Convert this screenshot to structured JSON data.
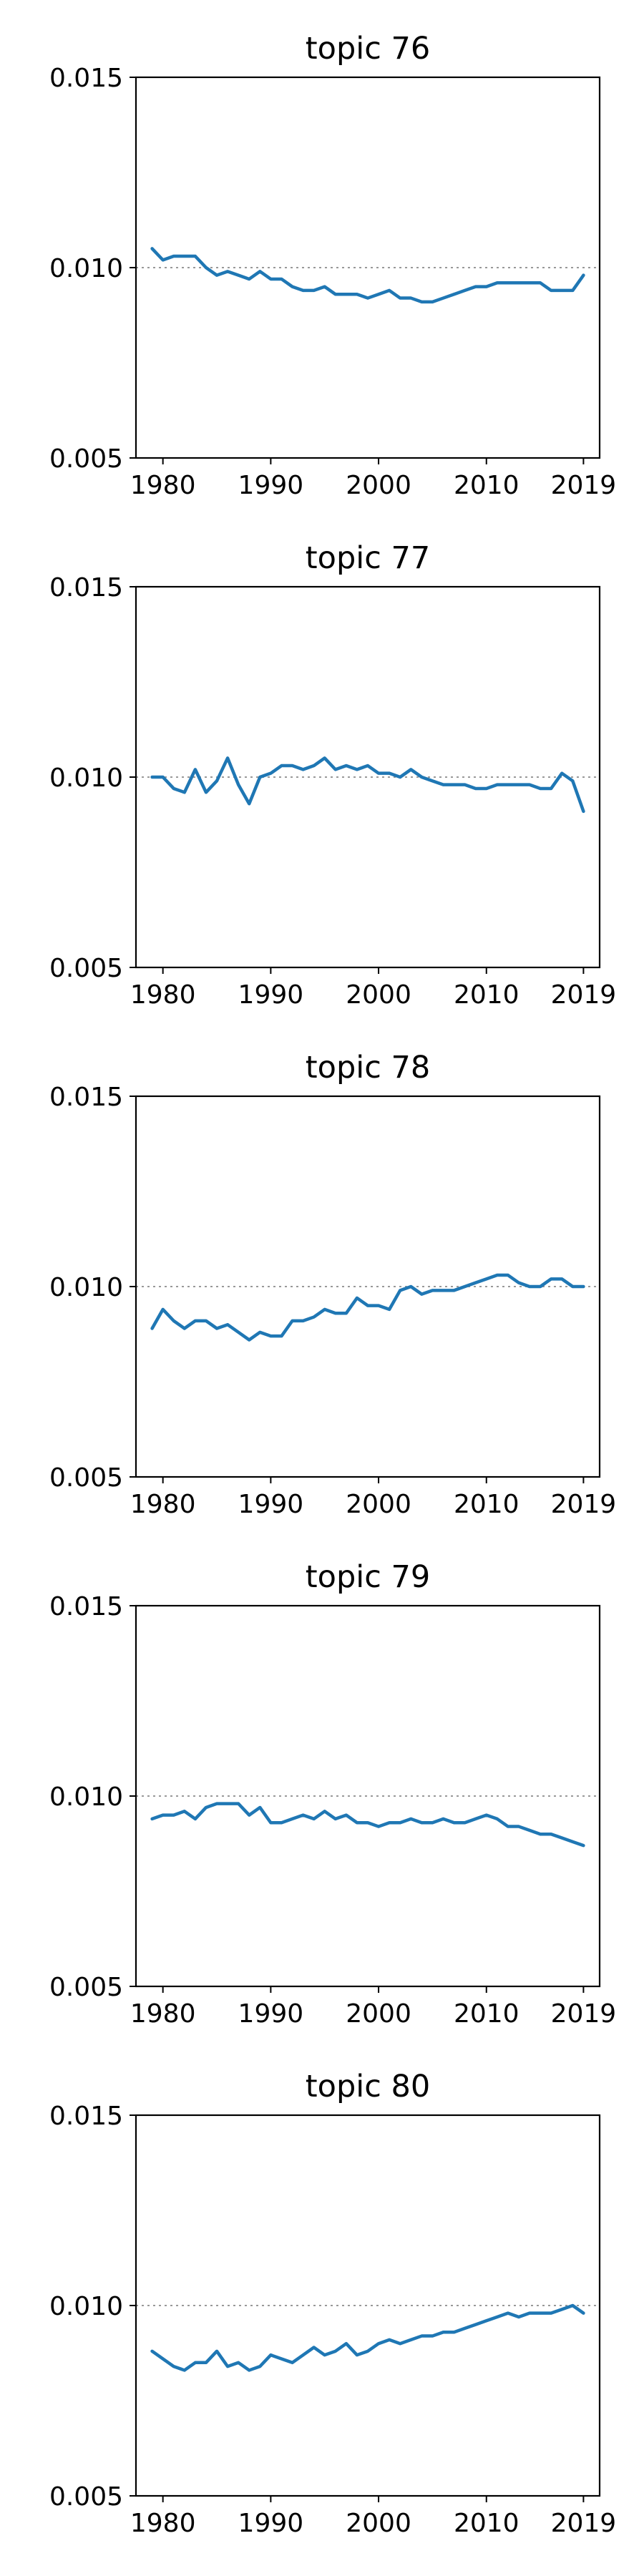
{
  "colors": {
    "series": "#1f77b4",
    "reference": "#999999"
  },
  "chart_data": [
    {
      "type": "line",
      "title": "topic 76",
      "x": [
        1979,
        1980,
        1981,
        1982,
        1983,
        1984,
        1985,
        1986,
        1987,
        1988,
        1989,
        1990,
        1991,
        1992,
        1993,
        1994,
        1995,
        1996,
        1997,
        1998,
        1999,
        2000,
        2001,
        2002,
        2003,
        2004,
        2005,
        2006,
        2007,
        2008,
        2009,
        2010,
        2011,
        2012,
        2013,
        2014,
        2015,
        2016,
        2017,
        2018,
        2019
      ],
      "series": [
        {
          "values": [
            0.0105,
            0.0102,
            0.0103,
            0.0103,
            0.0103,
            0.01,
            0.0098,
            0.0099,
            0.0098,
            0.0097,
            0.0099,
            0.0097,
            0.0097,
            0.0095,
            0.0094,
            0.0094,
            0.0095,
            0.0093,
            0.0093,
            0.0093,
            0.0092,
            0.0093,
            0.0094,
            0.0092,
            0.0092,
            0.0091,
            0.0091,
            0.0092,
            0.0093,
            0.0094,
            0.0095,
            0.0095,
            0.0096,
            0.0096,
            0.0096,
            0.0096,
            0.0096,
            0.0094,
            0.0094,
            0.0094,
            0.0098
          ]
        }
      ],
      "xticks": [
        1980,
        1990,
        2000,
        2010,
        2019
      ],
      "yticks": [
        "0.005",
        "0.010",
        "0.015"
      ],
      "xlim": [
        1977.5,
        2020.5
      ],
      "ylim": [
        0.005,
        0.015
      ],
      "reference_y": 0.01,
      "grid": false
    },
    {
      "type": "line",
      "title": "topic 77",
      "x": [
        1979,
        1980,
        1981,
        1982,
        1983,
        1984,
        1985,
        1986,
        1987,
        1988,
        1989,
        1990,
        1991,
        1992,
        1993,
        1994,
        1995,
        1996,
        1997,
        1998,
        1999,
        2000,
        2001,
        2002,
        2003,
        2004,
        2005,
        2006,
        2007,
        2008,
        2009,
        2010,
        2011,
        2012,
        2013,
        2014,
        2015,
        2016,
        2017,
        2018,
        2019
      ],
      "series": [
        {
          "values": [
            0.01,
            0.01,
            0.0097,
            0.0096,
            0.0102,
            0.0096,
            0.0099,
            0.0105,
            0.0098,
            0.0093,
            0.01,
            0.0101,
            0.0103,
            0.0103,
            0.0102,
            0.0103,
            0.0105,
            0.0102,
            0.0103,
            0.0102,
            0.0103,
            0.0101,
            0.0101,
            0.01,
            0.0102,
            0.01,
            0.0099,
            0.0098,
            0.0098,
            0.0098,
            0.0097,
            0.0097,
            0.0098,
            0.0098,
            0.0098,
            0.0098,
            0.0097,
            0.0097,
            0.0101,
            0.0099,
            0.0091
          ]
        }
      ],
      "xticks": [
        1980,
        1990,
        2000,
        2010,
        2019
      ],
      "yticks": [
        "0.005",
        "0.010",
        "0.015"
      ],
      "xlim": [
        1977.5,
        2020.5
      ],
      "ylim": [
        0.005,
        0.015
      ],
      "reference_y": 0.01,
      "grid": false
    },
    {
      "type": "line",
      "title": "topic 78",
      "x": [
        1979,
        1980,
        1981,
        1982,
        1983,
        1984,
        1985,
        1986,
        1987,
        1988,
        1989,
        1990,
        1991,
        1992,
        1993,
        1994,
        1995,
        1996,
        1997,
        1998,
        1999,
        2000,
        2001,
        2002,
        2003,
        2004,
        2005,
        2006,
        2007,
        2008,
        2009,
        2010,
        2011,
        2012,
        2013,
        2014,
        2015,
        2016,
        2017,
        2018,
        2019
      ],
      "series": [
        {
          "values": [
            0.0089,
            0.0094,
            0.0091,
            0.0089,
            0.0091,
            0.0091,
            0.0089,
            0.009,
            0.0088,
            0.0086,
            0.0088,
            0.0087,
            0.0087,
            0.0091,
            0.0091,
            0.0092,
            0.0094,
            0.0093,
            0.0093,
            0.0097,
            0.0095,
            0.0095,
            0.0094,
            0.0099,
            0.01,
            0.0098,
            0.0099,
            0.0099,
            0.0099,
            0.01,
            0.0101,
            0.0102,
            0.0103,
            0.0103,
            0.0101,
            0.01,
            0.01,
            0.0102,
            0.0102,
            0.01,
            0.01
          ]
        }
      ],
      "xticks": [
        1980,
        1990,
        2000,
        2010,
        2019
      ],
      "yticks": [
        "0.005",
        "0.010",
        "0.015"
      ],
      "xlim": [
        1977.5,
        2020.5
      ],
      "ylim": [
        0.005,
        0.015
      ],
      "reference_y": 0.01,
      "grid": false
    },
    {
      "type": "line",
      "title": "topic 79",
      "x": [
        1979,
        1980,
        1981,
        1982,
        1983,
        1984,
        1985,
        1986,
        1987,
        1988,
        1989,
        1990,
        1991,
        1992,
        1993,
        1994,
        1995,
        1996,
        1997,
        1998,
        1999,
        2000,
        2001,
        2002,
        2003,
        2004,
        2005,
        2006,
        2007,
        2008,
        2009,
        2010,
        2011,
        2012,
        2013,
        2014,
        2015,
        2016,
        2017,
        2018,
        2019
      ],
      "series": [
        {
          "values": [
            0.0094,
            0.0095,
            0.0095,
            0.0096,
            0.0094,
            0.0097,
            0.0098,
            0.0098,
            0.0098,
            0.0095,
            0.0097,
            0.0093,
            0.0093,
            0.0094,
            0.0095,
            0.0094,
            0.0096,
            0.0094,
            0.0095,
            0.0093,
            0.0093,
            0.0092,
            0.0093,
            0.0093,
            0.0094,
            0.0093,
            0.0093,
            0.0094,
            0.0093,
            0.0093,
            0.0094,
            0.0095,
            0.0094,
            0.0092,
            0.0092,
            0.0091,
            0.009,
            0.009,
            0.0089,
            0.0088,
            0.0087
          ]
        }
      ],
      "xticks": [
        1980,
        1990,
        2000,
        2010,
        2019
      ],
      "yticks": [
        "0.005",
        "0.010",
        "0.015"
      ],
      "xlim": [
        1977.5,
        2020.5
      ],
      "ylim": [
        0.005,
        0.015
      ],
      "reference_y": 0.01,
      "grid": false
    },
    {
      "type": "line",
      "title": "topic 80",
      "x": [
        1979,
        1980,
        1981,
        1982,
        1983,
        1984,
        1985,
        1986,
        1987,
        1988,
        1989,
        1990,
        1991,
        1992,
        1993,
        1994,
        1995,
        1996,
        1997,
        1998,
        1999,
        2000,
        2001,
        2002,
        2003,
        2004,
        2005,
        2006,
        2007,
        2008,
        2009,
        2010,
        2011,
        2012,
        2013,
        2014,
        2015,
        2016,
        2017,
        2018,
        2019
      ],
      "series": [
        {
          "values": [
            0.0088,
            0.0086,
            0.0084,
            0.0083,
            0.0085,
            0.0085,
            0.0088,
            0.0084,
            0.0085,
            0.0083,
            0.0084,
            0.0087,
            0.0086,
            0.0085,
            0.0087,
            0.0089,
            0.0087,
            0.0088,
            0.009,
            0.0087,
            0.0088,
            0.009,
            0.0091,
            0.009,
            0.0091,
            0.0092,
            0.0092,
            0.0093,
            0.0093,
            0.0094,
            0.0095,
            0.0096,
            0.0097,
            0.0098,
            0.0097,
            0.0098,
            0.0098,
            0.0098,
            0.0099,
            0.01,
            0.0098
          ]
        }
      ],
      "xticks": [
        1980,
        1990,
        2000,
        2010,
        2019
      ],
      "yticks": [
        "0.005",
        "0.010",
        "0.015"
      ],
      "xlim": [
        1977.5,
        2020.5
      ],
      "ylim": [
        0.005,
        0.015
      ],
      "reference_y": 0.01,
      "grid": false
    }
  ]
}
